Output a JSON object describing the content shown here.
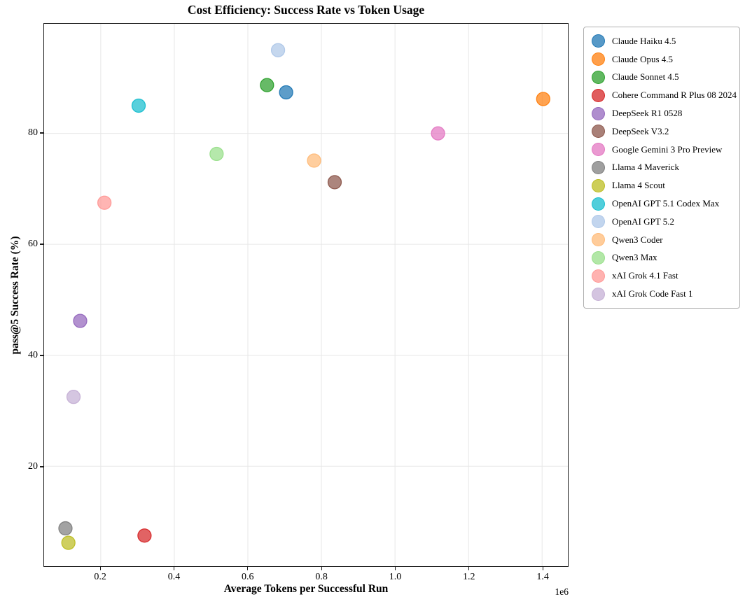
{
  "chart_data": {
    "type": "scatter",
    "title": "Cost Efficiency: Success Rate vs Token Usage",
    "xlabel": "Average Tokens per Successful Run",
    "ylabel": "pass@5 Success Rate (%)",
    "x_offset_label": "1e6",
    "grid": true,
    "legend_position": "outside-right",
    "xlim": [
      46000,
      1470000
    ],
    "ylim": [
      2.0,
      99.75
    ],
    "x_ticks": [
      200000,
      400000,
      600000,
      800000,
      1000000,
      1200000,
      1400000
    ],
    "x_tick_labels": [
      "0.2",
      "0.4",
      "0.6",
      "0.8",
      "1.0",
      "1.2",
      "1.4"
    ],
    "y_ticks": [
      20,
      40,
      60,
      80
    ],
    "y_tick_labels": [
      "20",
      "40",
      "60",
      "80"
    ],
    "grid_color": "#e7e7e7",
    "marker_diameter_px": 19,
    "series": [
      {
        "name": "Claude Haiku 4.5",
        "color": "#1f77b4",
        "x": 704000,
        "y": 87.4
      },
      {
        "name": "Claude Opus 4.5",
        "color": "#ff7f0e",
        "x": 1403000,
        "y": 86.2
      },
      {
        "name": "Claude Sonnet 4.5",
        "color": "#2ca02c",
        "x": 652000,
        "y": 88.7
      },
      {
        "name": "Cohere Command R Plus 08 2024",
        "color": "#d62728",
        "x": 319000,
        "y": 7.5
      },
      {
        "name": "DeepSeek R1 0528",
        "color": "#9467bd",
        "x": 144000,
        "y": 46.2
      },
      {
        "name": "DeepSeek V3.2",
        "color": "#8c564b",
        "x": 836000,
        "y": 71.2
      },
      {
        "name": "Google Gemini 3 Pro Preview",
        "color": "#e377c2",
        "x": 1117000,
        "y": 80.0
      },
      {
        "name": "Llama 4 Maverick",
        "color": "#7f7f7f",
        "x": 104000,
        "y": 8.8
      },
      {
        "name": "Llama 4 Scout",
        "color": "#bcbd22",
        "x": 112000,
        "y": 6.2
      },
      {
        "name": "OpenAI GPT 5.1 Codex Max",
        "color": "#17becf",
        "x": 303000,
        "y": 85.0
      },
      {
        "name": "OpenAI GPT 5.2",
        "color": "#aec7e8",
        "x": 682000,
        "y": 95.0
      },
      {
        "name": "Qwen3 Coder",
        "color": "#ffbb78",
        "x": 780000,
        "y": 75.1
      },
      {
        "name": "Qwen3 Max",
        "color": "#98df8a",
        "x": 515000,
        "y": 76.3
      },
      {
        "name": "xAI Grok 4.1 Fast",
        "color": "#ff9896",
        "x": 210000,
        "y": 67.5
      },
      {
        "name": "xAI Grok Code Fast 1",
        "color": "#c5b0d5",
        "x": 126000,
        "y": 32.5
      }
    ]
  }
}
